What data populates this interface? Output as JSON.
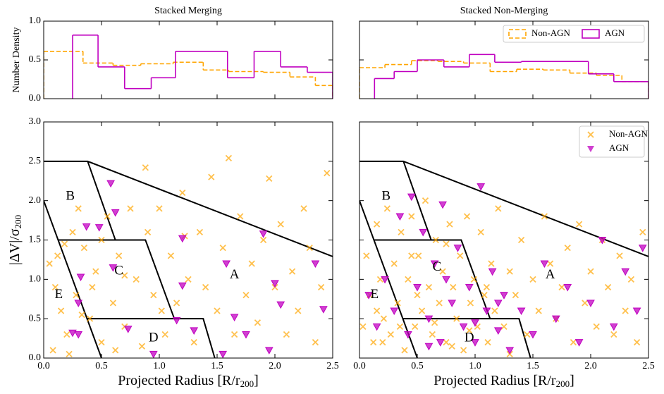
{
  "chart_data": [
    {
      "type": "histogram",
      "title": "Stacked Merging",
      "ylabel": "Number Density",
      "xlim": [
        0,
        2.5
      ],
      "ylim": [
        0,
        1.0
      ],
      "xticks": [
        {
          "value": 0,
          "label": "0.0"
        },
        0.5,
        {
          "value": 1,
          "label": "1.0"
        },
        1.5,
        {
          "value": 2,
          "label": "2.0"
        },
        2.5
      ],
      "yticks": [
        {
          "value": 0,
          "label": "0.0"
        },
        0.5,
        {
          "value": 1,
          "label": "1.0"
        }
      ],
      "xticklabels": false,
      "yticklabels": true,
      "series": [
        {
          "name": "Non-AGN",
          "color": "#ffa500",
          "style": "dashed",
          "bins": [
            0,
            0.34,
            0.6,
            0.84,
            1.12,
            1.38,
            1.6,
            1.9,
            2.13,
            2.35,
            2.5
          ],
          "counts": [
            0.61,
            0.46,
            0.43,
            0.45,
            0.47,
            0.37,
            0.35,
            0.34,
            0.28,
            0.17
          ]
        },
        {
          "name": "AGN",
          "color": "#c000c0",
          "style": "solid",
          "bins": [
            0.25,
            0.47,
            0.7,
            0.93,
            1.14,
            1.59,
            1.82,
            2.05,
            2.28,
            2.5
          ],
          "counts": [
            0.82,
            0.41,
            0.13,
            0.27,
            0.61,
            0.27,
            0.61,
            0.41,
            0.34
          ]
        }
      ]
    },
    {
      "type": "histogram",
      "title": "Stacked Non-Merging",
      "xlim": [
        0,
        2.5
      ],
      "ylim": [
        0,
        1.0
      ],
      "xticks": [
        {
          "value": 0,
          "label": "0.0"
        },
        0.5,
        {
          "value": 1,
          "label": "1.0"
        },
        1.5,
        {
          "value": 2,
          "label": "2.0"
        },
        2.5
      ],
      "yticks": [
        {
          "value": 0,
          "label": "0.0"
        },
        0.5,
        {
          "value": 1,
          "label": "1.0"
        }
      ],
      "xticklabels": false,
      "yticklabels": false,
      "legend": "upper right",
      "series": [
        {
          "name": "Non-AGN",
          "color": "#ffa500",
          "style": "dashed",
          "bins": [
            0,
            0.22,
            0.45,
            0.68,
            0.9,
            1.13,
            1.36,
            1.59,
            1.82,
            2.05,
            2.27,
            2.5
          ],
          "counts": [
            0.4,
            0.44,
            0.49,
            0.48,
            0.46,
            0.35,
            0.38,
            0.37,
            0.33,
            0.3,
            0.22
          ]
        },
        {
          "name": "AGN",
          "color": "#c000c0",
          "style": "solid",
          "bins": [
            0.13,
            0.3,
            0.5,
            0.73,
            0.95,
            1.17,
            1.4,
            1.98,
            2.2,
            2.5
          ],
          "counts": [
            0.26,
            0.35,
            0.5,
            0.41,
            0.57,
            0.47,
            0.48,
            0.32,
            0.22
          ]
        }
      ]
    },
    {
      "type": "scatter",
      "xlabel": [
        "Projected Radius [R/r",
        "200",
        "]"
      ],
      "ylabel": [
        "|ΔV|/σ",
        "200"
      ],
      "xlim": [
        0,
        2.5
      ],
      "ylim": [
        0,
        3.0
      ],
      "xticks": [
        {
          "value": 0,
          "label": "0.0"
        },
        0.5,
        {
          "value": 1,
          "label": "1.0"
        },
        1.5,
        {
          "value": 2,
          "label": "2.0"
        },
        2.5
      ],
      "yticks": [
        {
          "value": 0,
          "label": "0.0"
        },
        0.5,
        {
          "value": 1,
          "label": "1.0"
        },
        1.5,
        {
          "value": 2,
          "label": "2.0"
        },
        2.5,
        {
          "value": 3,
          "label": "3.0"
        }
      ],
      "xticklabels": true,
      "yticklabels": true,
      "boundaries": [
        [
          [
            0,
            2.5
          ],
          [
            0.38,
            2.5
          ],
          [
            2.5,
            1.29
          ]
        ],
        [
          [
            0.38,
            2.5
          ],
          [
            0.62,
            1.5
          ]
        ],
        [
          [
            0,
            2
          ],
          [
            0.5,
            0
          ]
        ],
        [
          [
            0.125,
            1.5
          ],
          [
            0.88,
            1.5
          ],
          [
            1.13,
            0.5
          ]
        ],
        [
          [
            0.375,
            0.5
          ],
          [
            1.38,
            0.5
          ],
          [
            1.48,
            0
          ]
        ]
      ],
      "annotations": [
        {
          "text": "A",
          "x": 1.65,
          "y": 1.05
        },
        {
          "text": "B",
          "x": 0.23,
          "y": 2.05
        },
        {
          "text": "C",
          "x": 0.65,
          "y": 1.1
        },
        {
          "text": "D",
          "x": 0.95,
          "y": 0.25
        },
        {
          "text": "E",
          "x": 0.13,
          "y": 0.8
        }
      ],
      "series": [
        {
          "name": "Non-AGN",
          "color": "#ffa500",
          "marker": "x",
          "x": [
            0.05,
            0.1,
            0.15,
            0.2,
            0.08,
            0.25,
            0.3,
            0.35,
            0.28,
            0.4,
            0.45,
            0.5,
            0.55,
            0.6,
            0.65,
            0.7,
            0.75,
            0.8,
            0.85,
            0.9,
            0.95,
            1.0,
            1.05,
            1.1,
            1.15,
            1.2,
            1.25,
            1.3,
            1.35,
            1.4,
            1.45,
            1.5,
            1.55,
            1.6,
            1.65,
            1.7,
            1.75,
            1.8,
            1.85,
            1.9,
            1.95,
            2.0,
            2.05,
            2.1,
            2.15,
            2.2,
            2.25,
            2.3,
            2.35,
            2.4,
            2.45,
            0.88,
            1.22,
            0.18,
            0.5,
            0.42,
            0.62,
            0.12,
            0.22,
            0.33,
            0.7,
            1.02
          ],
          "y": [
            1.2,
            0.9,
            0.6,
            0.3,
            0.1,
            1.6,
            1.9,
            1.4,
            0.8,
            0.5,
            1.1,
            0.2,
            1.8,
            0.7,
            1.3,
            0.4,
            1.9,
            1.0,
            0.15,
            1.6,
            0.8,
            1.9,
            0.3,
            1.3,
            0.7,
            2.1,
            1.0,
            0.2,
            1.6,
            0.9,
            2.3,
            0.6,
            1.4,
            2.54,
            0.3,
            1.8,
            0.8,
            1.2,
            0.45,
            1.5,
            2.28,
            0.9,
            1.7,
            0.3,
            1.1,
            0.6,
            1.9,
            1.4,
            0.2,
            0.9,
            2.35,
            2.42,
            1.55,
            1.45,
            1.5,
            0.9,
            0.1,
            1.3,
            0.05,
            0.55,
            1.05,
            0.6
          ]
        },
        {
          "name": "AGN",
          "color": "#c000c0",
          "marker": "v",
          "x": [
            0.58,
            0.37,
            0.48,
            0.62,
            0.6,
            0.32,
            0.3,
            0.25,
            0.3,
            0.73,
            0.95,
            1.15,
            1.2,
            1.58,
            1.2,
            1.75,
            1.95,
            2.05,
            2.0,
            2.42,
            1.9,
            2.35,
            1.55,
            1.65,
            1.3
          ],
          "y": [
            2.22,
            1.67,
            1.66,
            1.85,
            1.15,
            1.03,
            0.7,
            0.32,
            0.3,
            0.37,
            0.05,
            0.48,
            0.92,
            1.2,
            1.52,
            0.3,
            0.1,
            0.68,
            0.95,
            0.62,
            1.58,
            1.2,
            0.05,
            0.52,
            0.35
          ]
        }
      ]
    },
    {
      "type": "scatter",
      "xlabel": [
        "Projected Radius [R/r",
        "200",
        "]"
      ],
      "xlim": [
        0,
        2.5
      ],
      "ylim": [
        0,
        3.0
      ],
      "xticks": [
        {
          "value": 0,
          "label": "0.0"
        },
        0.5,
        {
          "value": 1,
          "label": "1.0"
        },
        1.5,
        {
          "value": 2,
          "label": "2.0"
        },
        2.5
      ],
      "yticks": [
        {
          "value": 0,
          "label": "0.0"
        },
        0.5,
        {
          "value": 1,
          "label": "1.0"
        },
        1.5,
        {
          "value": 2,
          "label": "2.0"
        },
        2.5,
        {
          "value": 3,
          "label": "3.0"
        }
      ],
      "xticklabels": true,
      "yticklabels": false,
      "legend": "upper right",
      "boundaries": [
        [
          [
            0,
            2.5
          ],
          [
            0.38,
            2.5
          ],
          [
            2.5,
            1.29
          ]
        ],
        [
          [
            0.38,
            2.5
          ],
          [
            0.62,
            1.5
          ]
        ],
        [
          [
            0,
            2
          ],
          [
            0.5,
            0
          ]
        ],
        [
          [
            0.125,
            1.5
          ],
          [
            0.88,
            1.5
          ],
          [
            1.13,
            0.5
          ]
        ],
        [
          [
            0.375,
            0.5
          ],
          [
            1.38,
            0.5
          ],
          [
            1.48,
            0
          ]
        ]
      ],
      "annotations": [
        {
          "text": "A",
          "x": 1.65,
          "y": 1.05
        },
        {
          "text": "B",
          "x": 0.23,
          "y": 2.05
        },
        {
          "text": "C",
          "x": 0.67,
          "y": 1.15
        },
        {
          "text": "D",
          "x": 0.95,
          "y": 0.25
        },
        {
          "text": "E",
          "x": 0.13,
          "y": 0.8
        }
      ],
      "series": [
        {
          "name": "Non-AGN",
          "color": "#ffa500",
          "marker": "x",
          "x": [
            0.03,
            0.06,
            0.09,
            0.12,
            0.15,
            0.18,
            0.21,
            0.24,
            0.27,
            0.3,
            0.33,
            0.36,
            0.39,
            0.42,
            0.45,
            0.48,
            0.51,
            0.54,
            0.57,
            0.6,
            0.63,
            0.66,
            0.69,
            0.72,
            0.75,
            0.78,
            0.81,
            0.84,
            0.87,
            0.9,
            0.93,
            0.96,
            0.99,
            1.02,
            1.05,
            1.08,
            1.11,
            1.14,
            1.17,
            1.2,
            1.25,
            1.3,
            1.35,
            1.4,
            1.45,
            1.5,
            1.55,
            1.6,
            1.65,
            1.7,
            1.75,
            1.8,
            1.85,
            1.9,
            1.95,
            2.0,
            2.05,
            2.1,
            2.15,
            2.2,
            2.25,
            2.3,
            2.35,
            2.4,
            2.45,
            0.2,
            0.35,
            0.5,
            0.65,
            0.8,
            0.95,
            1.1,
            1.3,
            0.15,
            0.45,
            0.75
          ],
          "y": [
            0.4,
            1.3,
            0.8,
            0.2,
            1.7,
            1.0,
            0.5,
            1.9,
            0.3,
            1.2,
            0.7,
            1.6,
            0.1,
            1.0,
            1.8,
            0.4,
            1.3,
            0.6,
            2.0,
            0.9,
            0.3,
            1.5,
            0.7,
            1.1,
            0.2,
            1.7,
            0.9,
            0.5,
            1.3,
            0.1,
            1.8,
            0.7,
            1.0,
            0.4,
            1.6,
            0.8,
            0.2,
            1.2,
            0.6,
            1.9,
            0.4,
            1.1,
            0.8,
            1.5,
            0.3,
            1.0,
            0.6,
            1.8,
            1.2,
            0.5,
            0.9,
            1.4,
            0.2,
            1.7,
            0.7,
            1.1,
            0.4,
            1.5,
            0.9,
            0.3,
            1.3,
            0.6,
            1.0,
            0.2,
            1.6,
            0.2,
            0.4,
            0.8,
            0.45,
            0.15,
            0.35,
            0.9,
            0.05,
            0.6,
            1.3,
            1.45
          ]
        },
        {
          "name": "AGN",
          "color": "#c000c0",
          "marker": "v",
          "x": [
            0.08,
            0.15,
            0.22,
            0.3,
            0.35,
            0.42,
            0.5,
            0.55,
            0.6,
            0.65,
            0.7,
            0.75,
            0.8,
            0.85,
            0.9,
            0.95,
            1.0,
            1.05,
            1.1,
            1.15,
            1.2,
            1.25,
            1.3,
            1.4,
            1.5,
            1.6,
            1.7,
            1.8,
            1.9,
            2.0,
            2.1,
            2.2,
            2.3,
            2.4,
            2.45,
            0.45,
            0.72,
            1.0,
            0.6,
            1.2
          ],
          "y": [
            0.8,
            0.4,
            1.0,
            0.6,
            1.8,
            0.3,
            0.9,
            1.6,
            0.5,
            1.2,
            0.2,
            1.0,
            0.7,
            1.4,
            0.4,
            0.9,
            0.2,
            2.18,
            0.6,
            1.1,
            0.35,
            0.8,
            0.1,
            0.6,
            0.3,
            1.2,
            0.5,
            0.9,
            0.2,
            0.7,
            1.5,
            0.4,
            1.1,
            0.6,
            1.4,
            2.05,
            1.95,
            0.45,
            0.15,
            0.7
          ]
        }
      ]
    }
  ]
}
